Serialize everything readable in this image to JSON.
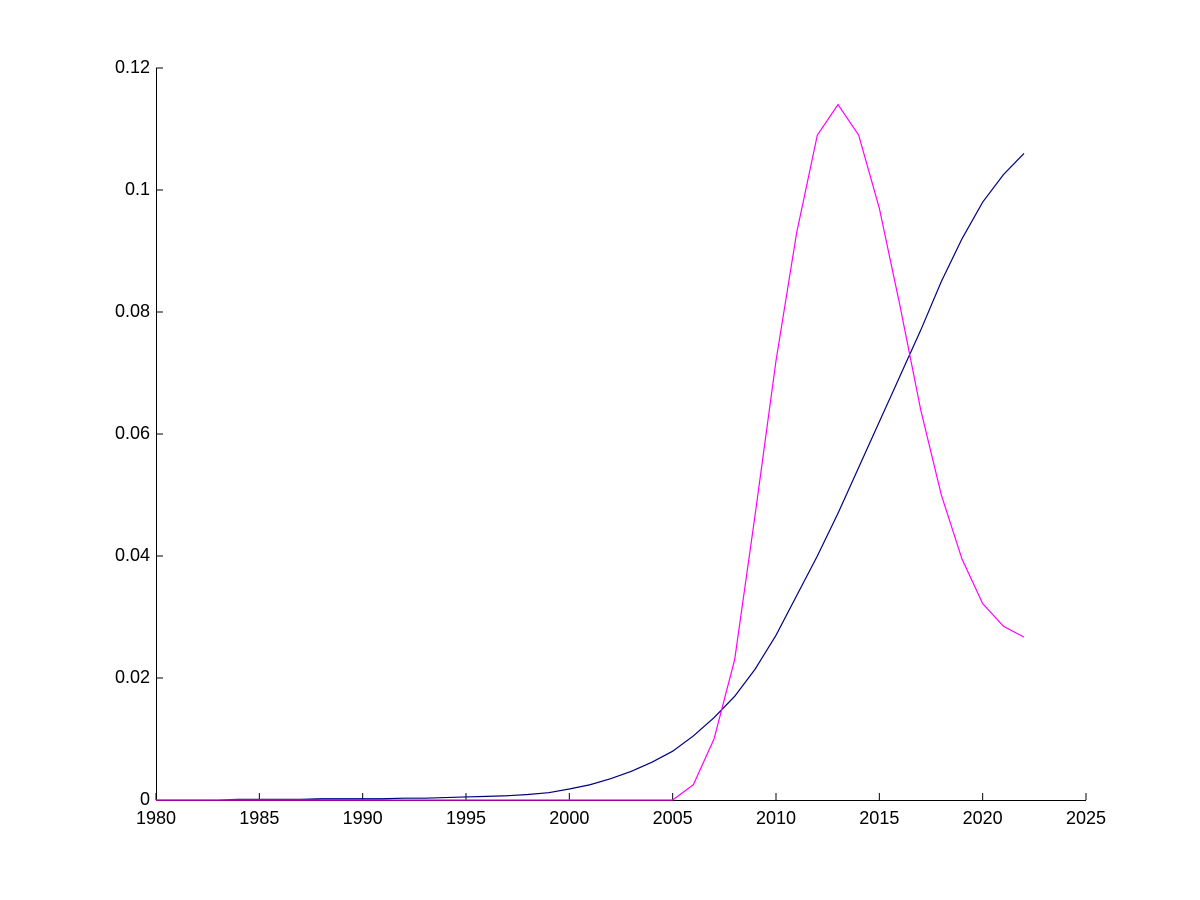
{
  "chart_data": {
    "type": "line",
    "x": [
      1980,
      1981,
      1982,
      1983,
      1984,
      1985,
      1986,
      1987,
      1988,
      1989,
      1990,
      1991,
      1992,
      1993,
      1994,
      1995,
      1996,
      1997,
      1998,
      1999,
      2000,
      2001,
      2002,
      2003,
      2004,
      2005,
      2006,
      2007,
      2008,
      2009,
      2010,
      2011,
      2012,
      2013,
      2014,
      2015,
      2016,
      2017,
      2018,
      2019,
      2020,
      2021,
      2022
    ],
    "series": [
      {
        "color": "#00007f",
        "values": [
          0,
          0,
          0,
          0,
          0.0001,
          0.0001,
          0.0001,
          0.0001,
          0.0002,
          0.0002,
          0.0002,
          0.0002,
          0.0003,
          0.0003,
          0.0004,
          0.0005,
          0.0006,
          0.0007,
          0.0009,
          0.0012,
          0.0018,
          0.0025,
          0.0035,
          0.0047,
          0.0062,
          0.008,
          0.0105,
          0.0135,
          0.017,
          0.0215,
          0.027,
          0.0335,
          0.04,
          0.047,
          0.0545,
          0.062,
          0.0695,
          0.077,
          0.085,
          0.092,
          0.098,
          0.1025,
          0.106
        ]
      },
      {
        "color": "#ff00ff",
        "values": [
          0,
          0,
          0,
          0,
          0,
          0,
          0,
          0,
          0,
          0,
          0,
          0,
          0,
          0,
          0,
          0,
          0,
          0,
          0,
          0,
          0,
          0,
          0,
          0,
          0,
          0,
          0.0025,
          0.01,
          0.023,
          0.047,
          0.072,
          0.093,
          0.109,
          0.114,
          0.109,
          0.097,
          0.081,
          0.064,
          0.05,
          0.0395,
          0.0322,
          0.0285,
          0.0267
        ]
      }
    ],
    "xlim": [
      1980,
      2025
    ],
    "xticks": [
      1980,
      1985,
      1990,
      1995,
      2000,
      2005,
      2010,
      2015,
      2020,
      2025
    ],
    "ylim": [
      0,
      0.12
    ],
    "yticks": [
      0,
      0.02,
      0.04,
      0.06,
      0.08,
      0.1,
      0.12
    ]
  }
}
